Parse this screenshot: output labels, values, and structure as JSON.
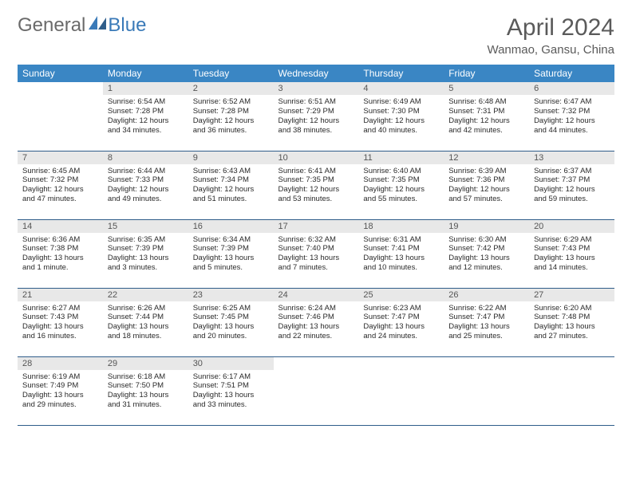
{
  "brand": {
    "part1": "General",
    "part2": "Blue"
  },
  "header": {
    "month": "April 2024",
    "location": "Wanmao, Gansu, China"
  },
  "colors": {
    "header_bg": "#3a86c4",
    "daynum_bg": "#e8e8e8",
    "row_border": "#2f5d8a",
    "brand_gray": "#6a6a6a",
    "brand_blue": "#3a7ab8"
  },
  "daynames": [
    "Sunday",
    "Monday",
    "Tuesday",
    "Wednesday",
    "Thursday",
    "Friday",
    "Saturday"
  ],
  "weeks": [
    [
      {
        "n": "",
        "sr": "",
        "ss": "",
        "dl": ""
      },
      {
        "n": "1",
        "sr": "Sunrise: 6:54 AM",
        "ss": "Sunset: 7:28 PM",
        "dl": "Daylight: 12 hours and 34 minutes."
      },
      {
        "n": "2",
        "sr": "Sunrise: 6:52 AM",
        "ss": "Sunset: 7:28 PM",
        "dl": "Daylight: 12 hours and 36 minutes."
      },
      {
        "n": "3",
        "sr": "Sunrise: 6:51 AM",
        "ss": "Sunset: 7:29 PM",
        "dl": "Daylight: 12 hours and 38 minutes."
      },
      {
        "n": "4",
        "sr": "Sunrise: 6:49 AM",
        "ss": "Sunset: 7:30 PM",
        "dl": "Daylight: 12 hours and 40 minutes."
      },
      {
        "n": "5",
        "sr": "Sunrise: 6:48 AM",
        "ss": "Sunset: 7:31 PM",
        "dl": "Daylight: 12 hours and 42 minutes."
      },
      {
        "n": "6",
        "sr": "Sunrise: 6:47 AM",
        "ss": "Sunset: 7:32 PM",
        "dl": "Daylight: 12 hours and 44 minutes."
      }
    ],
    [
      {
        "n": "7",
        "sr": "Sunrise: 6:45 AM",
        "ss": "Sunset: 7:32 PM",
        "dl": "Daylight: 12 hours and 47 minutes."
      },
      {
        "n": "8",
        "sr": "Sunrise: 6:44 AM",
        "ss": "Sunset: 7:33 PM",
        "dl": "Daylight: 12 hours and 49 minutes."
      },
      {
        "n": "9",
        "sr": "Sunrise: 6:43 AM",
        "ss": "Sunset: 7:34 PM",
        "dl": "Daylight: 12 hours and 51 minutes."
      },
      {
        "n": "10",
        "sr": "Sunrise: 6:41 AM",
        "ss": "Sunset: 7:35 PM",
        "dl": "Daylight: 12 hours and 53 minutes."
      },
      {
        "n": "11",
        "sr": "Sunrise: 6:40 AM",
        "ss": "Sunset: 7:35 PM",
        "dl": "Daylight: 12 hours and 55 minutes."
      },
      {
        "n": "12",
        "sr": "Sunrise: 6:39 AM",
        "ss": "Sunset: 7:36 PM",
        "dl": "Daylight: 12 hours and 57 minutes."
      },
      {
        "n": "13",
        "sr": "Sunrise: 6:37 AM",
        "ss": "Sunset: 7:37 PM",
        "dl": "Daylight: 12 hours and 59 minutes."
      }
    ],
    [
      {
        "n": "14",
        "sr": "Sunrise: 6:36 AM",
        "ss": "Sunset: 7:38 PM",
        "dl": "Daylight: 13 hours and 1 minute."
      },
      {
        "n": "15",
        "sr": "Sunrise: 6:35 AM",
        "ss": "Sunset: 7:39 PM",
        "dl": "Daylight: 13 hours and 3 minutes."
      },
      {
        "n": "16",
        "sr": "Sunrise: 6:34 AM",
        "ss": "Sunset: 7:39 PM",
        "dl": "Daylight: 13 hours and 5 minutes."
      },
      {
        "n": "17",
        "sr": "Sunrise: 6:32 AM",
        "ss": "Sunset: 7:40 PM",
        "dl": "Daylight: 13 hours and 7 minutes."
      },
      {
        "n": "18",
        "sr": "Sunrise: 6:31 AM",
        "ss": "Sunset: 7:41 PM",
        "dl": "Daylight: 13 hours and 10 minutes."
      },
      {
        "n": "19",
        "sr": "Sunrise: 6:30 AM",
        "ss": "Sunset: 7:42 PM",
        "dl": "Daylight: 13 hours and 12 minutes."
      },
      {
        "n": "20",
        "sr": "Sunrise: 6:29 AM",
        "ss": "Sunset: 7:43 PM",
        "dl": "Daylight: 13 hours and 14 minutes."
      }
    ],
    [
      {
        "n": "21",
        "sr": "Sunrise: 6:27 AM",
        "ss": "Sunset: 7:43 PM",
        "dl": "Daylight: 13 hours and 16 minutes."
      },
      {
        "n": "22",
        "sr": "Sunrise: 6:26 AM",
        "ss": "Sunset: 7:44 PM",
        "dl": "Daylight: 13 hours and 18 minutes."
      },
      {
        "n": "23",
        "sr": "Sunrise: 6:25 AM",
        "ss": "Sunset: 7:45 PM",
        "dl": "Daylight: 13 hours and 20 minutes."
      },
      {
        "n": "24",
        "sr": "Sunrise: 6:24 AM",
        "ss": "Sunset: 7:46 PM",
        "dl": "Daylight: 13 hours and 22 minutes."
      },
      {
        "n": "25",
        "sr": "Sunrise: 6:23 AM",
        "ss": "Sunset: 7:47 PM",
        "dl": "Daylight: 13 hours and 24 minutes."
      },
      {
        "n": "26",
        "sr": "Sunrise: 6:22 AM",
        "ss": "Sunset: 7:47 PM",
        "dl": "Daylight: 13 hours and 25 minutes."
      },
      {
        "n": "27",
        "sr": "Sunrise: 6:20 AM",
        "ss": "Sunset: 7:48 PM",
        "dl": "Daylight: 13 hours and 27 minutes."
      }
    ],
    [
      {
        "n": "28",
        "sr": "Sunrise: 6:19 AM",
        "ss": "Sunset: 7:49 PM",
        "dl": "Daylight: 13 hours and 29 minutes."
      },
      {
        "n": "29",
        "sr": "Sunrise: 6:18 AM",
        "ss": "Sunset: 7:50 PM",
        "dl": "Daylight: 13 hours and 31 minutes."
      },
      {
        "n": "30",
        "sr": "Sunrise: 6:17 AM",
        "ss": "Sunset: 7:51 PM",
        "dl": "Daylight: 13 hours and 33 minutes."
      },
      {
        "n": "",
        "sr": "",
        "ss": "",
        "dl": ""
      },
      {
        "n": "",
        "sr": "",
        "ss": "",
        "dl": ""
      },
      {
        "n": "",
        "sr": "",
        "ss": "",
        "dl": ""
      },
      {
        "n": "",
        "sr": "",
        "ss": "",
        "dl": ""
      }
    ]
  ]
}
